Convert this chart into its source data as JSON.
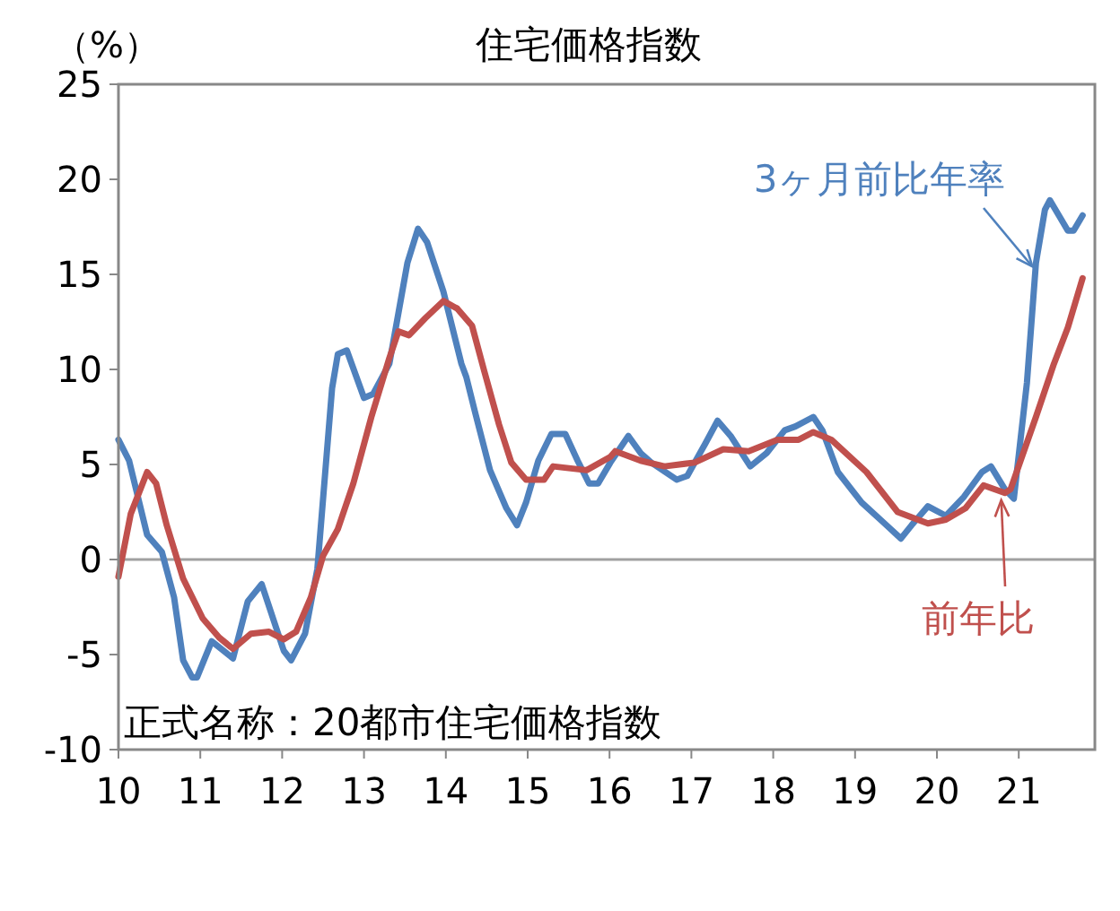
{
  "chart_data": {
    "type": "line",
    "title": "住宅価格指数",
    "ylabel": "（%）",
    "xlim": [
      10,
      21.93
    ],
    "xticks": [
      10,
      11,
      12,
      13,
      14,
      15,
      16,
      17,
      18,
      19,
      20,
      21
    ],
    "ylim": [
      -10,
      25
    ],
    "yticks": [
      -10,
      -5,
      0,
      5,
      10,
      15,
      20,
      25
    ],
    "grid": false,
    "line_style": "solid",
    "ref_lines": [
      {
        "axis": "y",
        "value": 0,
        "color": "#a0a0a0"
      }
    ],
    "annotations": [
      "正式名称：20都市住宅価格指数"
    ],
    "series": [
      {
        "name": "3ヶ月前比年率",
        "color": "#4f81bd",
        "x": [
          10.0,
          10.13,
          10.35,
          10.53,
          10.68,
          10.79,
          10.9,
          10.96,
          11.14,
          11.4,
          11.58,
          11.75,
          12.02,
          12.11,
          12.28,
          12.43,
          12.61,
          12.68,
          12.79,
          13.0,
          13.11,
          13.31,
          13.53,
          13.66,
          13.77,
          13.97,
          14.19,
          14.25,
          14.36,
          14.54,
          14.74,
          14.87,
          14.98,
          15.13,
          15.29,
          15.46,
          15.61,
          15.75,
          15.86,
          16.01,
          16.23,
          16.38,
          16.51,
          16.82,
          16.95,
          17.17,
          17.32,
          17.48,
          17.72,
          17.92,
          18.14,
          18.27,
          18.49,
          18.6,
          18.79,
          19.08,
          19.36,
          19.56,
          19.69,
          19.89,
          20.11,
          20.33,
          20.55,
          20.66,
          20.83,
          20.94,
          21.1,
          21.21,
          21.32,
          21.38,
          21.49,
          21.6,
          21.67,
          21.78
        ],
        "values": [
          6.3,
          5.2,
          1.3,
          0.4,
          -2.0,
          -5.3,
          -6.2,
          -6.2,
          -4.3,
          -5.2,
          -2.2,
          -1.3,
          -4.8,
          -5.3,
          -3.9,
          -0.5,
          9.0,
          10.8,
          11.0,
          8.5,
          8.7,
          10.3,
          15.6,
          17.4,
          16.7,
          14.1,
          10.3,
          9.6,
          7.7,
          4.7,
          2.7,
          1.8,
          3.0,
          5.2,
          6.6,
          6.6,
          5.2,
          4.0,
          4.0,
          5.1,
          6.5,
          5.6,
          5.1,
          4.2,
          4.4,
          6.1,
          7.3,
          6.5,
          4.9,
          5.6,
          6.8,
          7.0,
          7.5,
          6.8,
          4.6,
          3.0,
          1.9,
          1.1,
          1.8,
          2.8,
          2.3,
          3.3,
          4.6,
          4.9,
          3.7,
          3.2,
          9.3,
          15.6,
          18.4,
          18.9,
          18.1,
          17.3,
          17.3,
          18.1
        ]
      },
      {
        "name": "前年比",
        "color": "#c0504d",
        "x": [
          10.0,
          10.15,
          10.35,
          10.46,
          10.59,
          10.79,
          11.03,
          11.23,
          11.4,
          11.62,
          11.84,
          12.02,
          12.17,
          12.35,
          12.5,
          12.68,
          12.87,
          13.09,
          13.31,
          13.42,
          13.55,
          13.75,
          13.97,
          14.14,
          14.32,
          14.47,
          14.65,
          14.8,
          14.98,
          15.2,
          15.31,
          15.72,
          16.01,
          16.07,
          16.38,
          16.67,
          17.04,
          17.39,
          17.7,
          18.05,
          18.31,
          18.49,
          18.71,
          19.14,
          19.52,
          19.89,
          20.11,
          20.35,
          20.57,
          20.83,
          20.9,
          21.21,
          21.43,
          21.6,
          21.78
        ],
        "values": [
          -0.9,
          2.4,
          4.6,
          4.0,
          1.8,
          -1.0,
          -3.1,
          -4.1,
          -4.7,
          -3.9,
          -3.8,
          -4.2,
          -3.8,
          -2.0,
          0.2,
          1.6,
          4.0,
          7.5,
          10.6,
          12.0,
          11.8,
          12.7,
          13.6,
          13.2,
          12.3,
          9.9,
          7.1,
          5.1,
          4.2,
          4.2,
          4.9,
          4.7,
          5.4,
          5.7,
          5.2,
          4.9,
          5.1,
          5.8,
          5.7,
          6.3,
          6.3,
          6.7,
          6.3,
          4.6,
          2.5,
          1.9,
          2.1,
          2.7,
          3.9,
          3.5,
          3.7,
          7.5,
          10.3,
          12.2,
          14.8
        ]
      }
    ]
  }
}
